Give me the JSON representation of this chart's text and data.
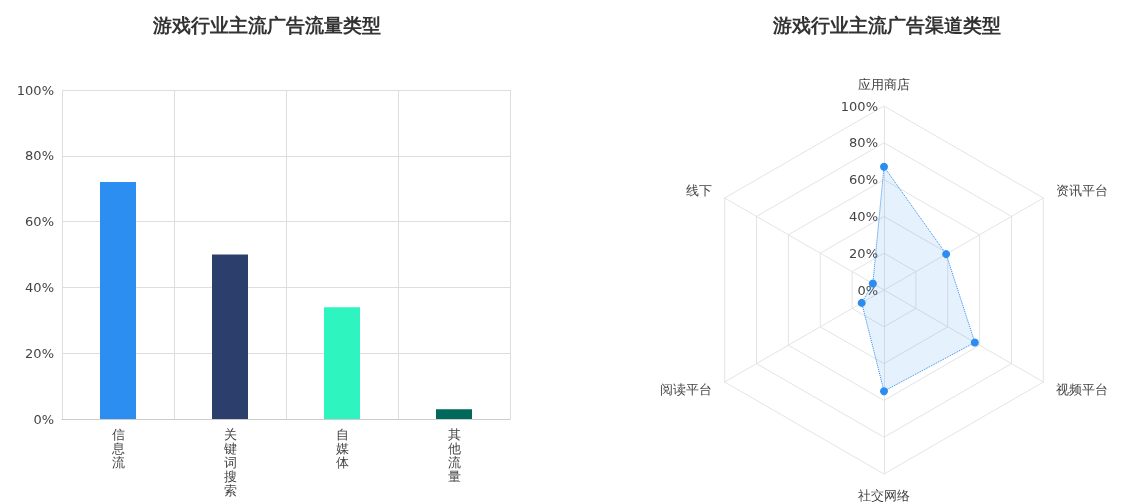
{
  "chart_data": [
    {
      "type": "bar",
      "title": "游戏行业主流广告流量类型",
      "categories": [
        "信息流",
        "关键词搜索",
        "自媒体",
        "其他流量"
      ],
      "values": [
        72,
        50,
        34,
        3
      ],
      "colors": [
        "#2b8ef0",
        "#2c3e6b",
        "#2ef5c0",
        "#00695c"
      ],
      "ylim": [
        0,
        100
      ],
      "yticks": [
        {
          "value": 0,
          "label": "0%"
        },
        {
          "value": 20,
          "label": "20%"
        },
        {
          "value": 40,
          "label": "40%"
        },
        {
          "value": 60,
          "label": "60%"
        },
        {
          "value": 80,
          "label": "80%"
        },
        {
          "value": 100,
          "label": "100%"
        }
      ],
      "grid": true
    },
    {
      "type": "radar",
      "title": "游戏行业主流广告渠道类型",
      "categories": [
        "应用商店",
        "资讯平台",
        "视频平台",
        "社交网络",
        "阅读平台",
        "线下"
      ],
      "series": [
        {
          "color": "#2d8cf0",
          "values": [
            67,
            39,
            57,
            55,
            14,
            7
          ]
        }
      ],
      "ylim": [
        0,
        100
      ],
      "yticks": [
        {
          "value": 0,
          "label": "0%"
        },
        {
          "value": 20,
          "label": "20%"
        },
        {
          "value": 40,
          "label": "40%"
        },
        {
          "value": 60,
          "label": "60%"
        },
        {
          "value": 80,
          "label": "80%"
        },
        {
          "value": 100,
          "label": "100%"
        }
      ],
      "marker": "circle",
      "line_style": "dotted",
      "grid": true
    }
  ]
}
